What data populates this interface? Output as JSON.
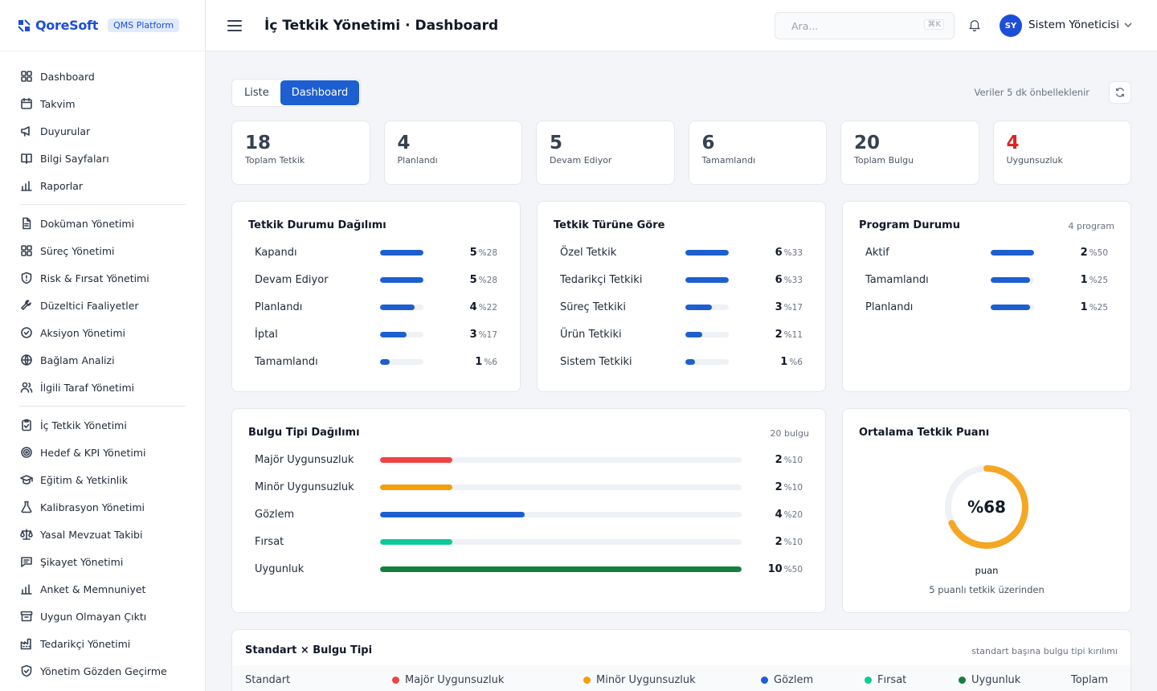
{
  "brand": {
    "name": "QoreSoft",
    "badge": "QMS Platform"
  },
  "sidebar": {
    "groups": [
      [
        {
          "label": "Dashboard",
          "icon": "grid-icon"
        },
        {
          "label": "Takvim",
          "icon": "calendar-icon"
        },
        {
          "label": "Duyurular",
          "icon": "megaphone-icon"
        },
        {
          "label": "Bilgi Sayfaları",
          "icon": "book-icon"
        },
        {
          "label": "Raporlar",
          "icon": "bar-chart-icon"
        }
      ],
      [
        {
          "label": "Doküman Yönetimi",
          "icon": "document-icon"
        },
        {
          "label": "Süreç Yönetimi",
          "icon": "grid-icon"
        },
        {
          "label": "Risk & Fırsat Yönetimi",
          "icon": "shield-icon"
        },
        {
          "label": "Düzeltici Faaliyetler",
          "icon": "wrench-icon"
        },
        {
          "label": "Aksiyon Yönetimi",
          "icon": "check-circle-icon"
        },
        {
          "label": "Bağlam Analizi",
          "icon": "globe-icon"
        },
        {
          "label": "İlgili Taraf Yönetimi",
          "icon": "users-icon"
        }
      ],
      [
        {
          "label": "İç Tetkik Yönetimi",
          "icon": "clipboard-check-icon"
        },
        {
          "label": "Hedef & KPI Yönetimi",
          "icon": "target-icon"
        },
        {
          "label": "Eğitim & Yetkinlik",
          "icon": "graduation-cap-icon"
        },
        {
          "label": "Kalibrasyon Yönetimi",
          "icon": "flask-icon"
        },
        {
          "label": "Yasal Mevzuat Takibi",
          "icon": "scale-icon"
        },
        {
          "label": "Şikayet Yönetimi",
          "icon": "message-icon"
        },
        {
          "label": "Anket & Memnuniyet",
          "icon": "bar-chart-icon"
        },
        {
          "label": "Uygun Olmayan Çıktı",
          "icon": "archive-icon"
        },
        {
          "label": "Tedarikçi Yönetimi",
          "icon": "factory-icon"
        },
        {
          "label": "Yönetim Gözden Geçirme",
          "icon": "shield-check-icon"
        }
      ]
    ]
  },
  "header": {
    "title": "İç Tetkik Yönetimi · Dashboard",
    "search_placeholder": "Ara...",
    "search_shortcut": "⌘K",
    "user_initials": "SY",
    "user_name": "Sistem Yöneticisi"
  },
  "view_toggle": {
    "list_label": "Liste",
    "dashboard_label": "Dashboard",
    "active": "Dashboard"
  },
  "cache_note": "Veriler 5 dk önbelleklenir",
  "kpis": [
    {
      "value": "18",
      "label": "Toplam Tetkik",
      "color": "#374151"
    },
    {
      "value": "4",
      "label": "Planlandı",
      "color": "#374151"
    },
    {
      "value": "5",
      "label": "Devam Ediyor",
      "color": "#374151"
    },
    {
      "value": "6",
      "label": "Tamamlandı",
      "color": "#374151"
    },
    {
      "value": "20",
      "label": "Toplam Bulgu",
      "color": "#374151"
    },
    {
      "value": "4",
      "label": "Uygunsuzluk",
      "color": "#dc2626"
    }
  ],
  "status_card": {
    "title": "Tetkik Durumu Dağılımı",
    "rows": [
      {
        "label": "Kapandı",
        "count": "5",
        "pct": "%28",
        "fraction": 0.28
      },
      {
        "label": "Devam Ediyor",
        "count": "5",
        "pct": "%28",
        "fraction": 0.28
      },
      {
        "label": "Planlandı",
        "count": "4",
        "pct": "%22",
        "fraction": 0.22
      },
      {
        "label": "İptal",
        "count": "3",
        "pct": "%17",
        "fraction": 0.17
      },
      {
        "label": "Tamamlandı",
        "count": "1",
        "pct": "%6",
        "fraction": 0.06
      }
    ]
  },
  "type_card": {
    "title": "Tetkik Türüne Göre",
    "rows": [
      {
        "label": "Özel Tetkik",
        "count": "6",
        "pct": "%33",
        "fraction": 0.33
      },
      {
        "label": "Tedarikçi Tetkiki",
        "count": "6",
        "pct": "%33",
        "fraction": 0.33
      },
      {
        "label": "Süreç Tetkiki",
        "count": "3",
        "pct": "%17",
        "fraction": 0.17
      },
      {
        "label": "Ürün Tetkiki",
        "count": "2",
        "pct": "%11",
        "fraction": 0.11
      },
      {
        "label": "Sistem Tetkiki",
        "count": "1",
        "pct": "%6",
        "fraction": 0.06
      }
    ]
  },
  "program_card": {
    "title": "Program Durumu",
    "meta": "4 program",
    "rows": [
      {
        "label": "Aktif",
        "count": "2",
        "pct": "%50",
        "fraction": 0.5
      },
      {
        "label": "Tamamlandı",
        "count": "1",
        "pct": "%25",
        "fraction": 0.25
      },
      {
        "label": "Planlandı",
        "count": "1",
        "pct": "%25",
        "fraction": 0.25
      }
    ]
  },
  "finding_card": {
    "title": "Bulgu Tipi Dağılımı",
    "meta": "20 bulgu",
    "rows": [
      {
        "label": "Majör Uygunsuzluk",
        "count": "2",
        "pct": "%10",
        "fraction": 0.1,
        "color": "#ef4444"
      },
      {
        "label": "Minör Uygunsuzluk",
        "count": "2",
        "pct": "%10",
        "fraction": 0.1,
        "color": "#f59e0b"
      },
      {
        "label": "Gözlem",
        "count": "4",
        "pct": "%20",
        "fraction": 0.2,
        "color": "#1d5fd0"
      },
      {
        "label": "Fırsat",
        "count": "2",
        "pct": "%10",
        "fraction": 0.1,
        "color": "#10c99a"
      },
      {
        "label": "Uygunluk",
        "count": "10",
        "pct": "%50",
        "fraction": 0.5,
        "color": "#15803d"
      }
    ]
  },
  "score_card": {
    "title": "Ortalama Tetkik Puanı",
    "value_text": "%68",
    "fraction": 0.68,
    "unit": "puan",
    "sub": "5 puanlı tetkik üzerinden",
    "color": "#f5a623"
  },
  "matrix_card": {
    "title": "Standart × Bulgu Tipi",
    "meta": "standart başına bulgu tipi kırılımı",
    "columns": [
      {
        "label": "Standart",
        "color": ""
      },
      {
        "label": "Majör Uygunsuzluk",
        "color": "#ef4444"
      },
      {
        "label": "Minör Uygunsuzluk",
        "color": "#f59e0b"
      },
      {
        "label": "Gözlem",
        "color": "#1d5fd0"
      },
      {
        "label": "Fırsat",
        "color": "#10c99a"
      },
      {
        "label": "Uygunluk",
        "color": "#15803d"
      },
      {
        "label": "Toplam",
        "color": ""
      }
    ]
  },
  "colors": {
    "primary": "#1d5fd0",
    "danger": "#dc2626"
  }
}
